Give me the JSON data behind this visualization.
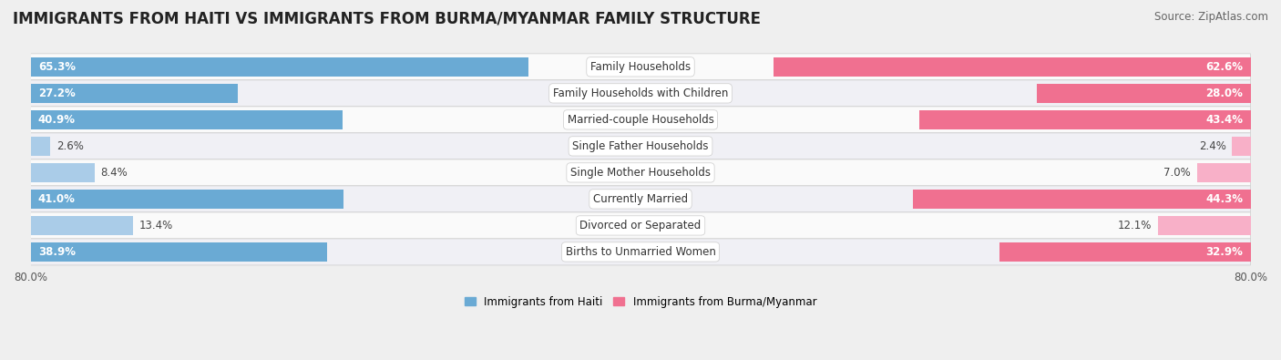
{
  "title": "IMMIGRANTS FROM HAITI VS IMMIGRANTS FROM BURMA/MYANMAR FAMILY STRUCTURE",
  "source": "Source: ZipAtlas.com",
  "categories": [
    "Family Households",
    "Family Households with Children",
    "Married-couple Households",
    "Single Father Households",
    "Single Mother Households",
    "Currently Married",
    "Divorced or Separated",
    "Births to Unmarried Women"
  ],
  "haiti_values": [
    65.3,
    27.2,
    40.9,
    2.6,
    8.4,
    41.0,
    13.4,
    38.9
  ],
  "burma_values": [
    62.6,
    28.0,
    43.4,
    2.4,
    7.0,
    44.3,
    12.1,
    32.9
  ],
  "haiti_color_strong": "#6aaad4",
  "burma_color_strong": "#f07090",
  "haiti_color_light": "#aacce8",
  "burma_color_light": "#f8b0c8",
  "strong_threshold": 15.0,
  "bg_color": "#efefef",
  "row_color_odd": "#fafafa",
  "row_color_even": "#f0f0f5",
  "legend_haiti": "Immigrants from Haiti",
  "legend_burma": "Immigrants from Burma/Myanmar",
  "x_max": 80.0,
  "bar_height": 0.72,
  "title_fontsize": 12,
  "label_fontsize": 8.5,
  "value_fontsize": 8.5,
  "axis_fontsize": 8.5,
  "source_fontsize": 8.5
}
